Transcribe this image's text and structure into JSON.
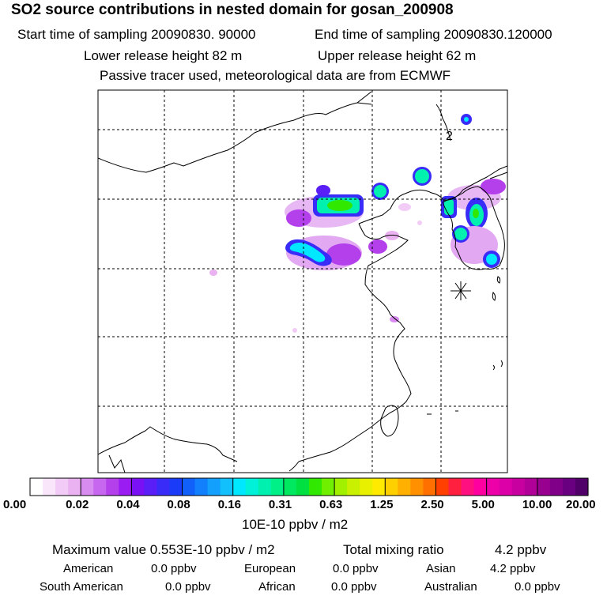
{
  "header": {
    "title": "SO2 source contributions in nested domain for gosan_200908",
    "start_label": "Start time of sampling 20090830. 90000",
    "end_label": "End time of sampling 20090830.120000",
    "lower_label": "Lower release height   82 m",
    "upper_label": "Upper release height   62 m",
    "info": "Passive tracer used, meteorological data are from ECMWF"
  },
  "chart_data": {
    "type": "heatmap",
    "title": "SO2 source contributions in nested domain for gosan_200908",
    "map_annotation": "2",
    "receptor_marker": "asterisk",
    "colorbar": {
      "ticks": [
        "0.00",
        "0.02",
        "0.04",
        "0.08",
        "0.16",
        "0.31",
        "0.63",
        "1.25",
        "2.50",
        "5.00",
        "10.00",
        "20.00"
      ],
      "units": "10E-10 ppbv / m2",
      "colors": [
        "#ffffff",
        "#f9e6fb",
        "#f2ccf6",
        "#ebb2f2",
        "#d98cf0",
        "#c766ee",
        "#b440ec",
        "#9a1cf2",
        "#7a10f4",
        "#5a1ef6",
        "#3a2cf8",
        "#1a3cf8",
        "#1260fa",
        "#1280fc",
        "#12a0fc",
        "#12c0fc",
        "#00e8ff",
        "#00f0d8",
        "#00f0b0",
        "#00f088",
        "#00e860",
        "#00e040",
        "#30e800",
        "#70f000",
        "#a0f000",
        "#c8f000",
        "#e8f000",
        "#ffea00",
        "#ffd000",
        "#ffb000",
        "#ff9000",
        "#ff7000",
        "#ff4000",
        "#ff2040",
        "#ff1080",
        "#ff00a0",
        "#ee00a8",
        "#dc00a8",
        "#c800a0",
        "#b00098",
        "#980090",
        "#800088",
        "#680080",
        "#500068"
      ]
    }
  },
  "stats": {
    "max_label": "Maximum value  0.553E-10 ppbv / m2",
    "total_label": "Total mixing ratio",
    "total_value": "4.2 ppbv",
    "regions": [
      {
        "name": "American",
        "value": "0.0 ppbv"
      },
      {
        "name": "European",
        "value": "0.0 ppbv"
      },
      {
        "name": "Asian",
        "value": "4.2 ppbv"
      },
      {
        "name": "South American",
        "value": "0.0 ppbv"
      },
      {
        "name": "African",
        "value": "0.0 ppbv"
      },
      {
        "name": "Australian",
        "value": "0.0 ppbv"
      }
    ]
  }
}
